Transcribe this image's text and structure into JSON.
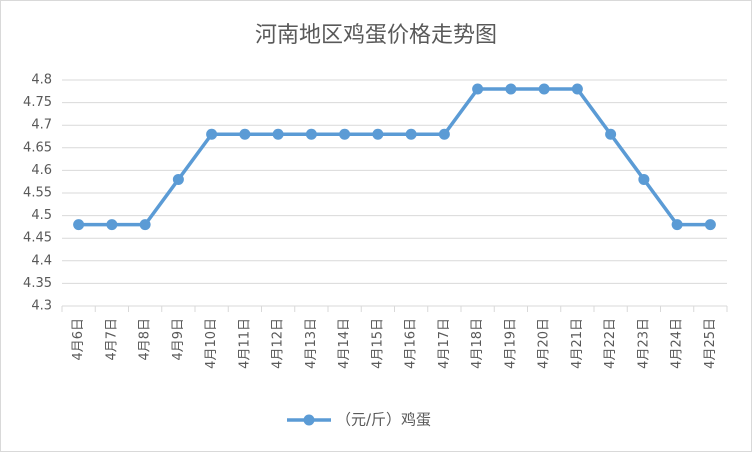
{
  "chart_data": {
    "type": "line",
    "title": "河南地区鸡蛋价格走势图",
    "categories": [
      "4月6日",
      "4月7日",
      "4月8日",
      "4月9日",
      "4月10日",
      "4月11日",
      "4月12日",
      "4月13日",
      "4月14日",
      "4月15日",
      "4月16日",
      "4月17日",
      "4月18日",
      "4月19日",
      "4月20日",
      "4月21日",
      "4月22日",
      "4月23日",
      "4月24日",
      "4月25日"
    ],
    "series": [
      {
        "name": "（元/斤）鸡蛋",
        "color": "#5b9bd5",
        "values": [
          4.48,
          4.48,
          4.48,
          4.58,
          4.68,
          4.68,
          4.68,
          4.68,
          4.68,
          4.68,
          4.68,
          4.68,
          4.78,
          4.78,
          4.78,
          4.78,
          4.68,
          4.58,
          4.48,
          4.48
        ]
      }
    ],
    "ylim": [
      4.3,
      4.8
    ],
    "yticks": [
      4.3,
      4.35,
      4.4,
      4.45,
      4.5,
      4.55,
      4.6,
      4.65,
      4.7,
      4.75,
      4.8
    ],
    "grid": true,
    "legend": "bottom"
  }
}
